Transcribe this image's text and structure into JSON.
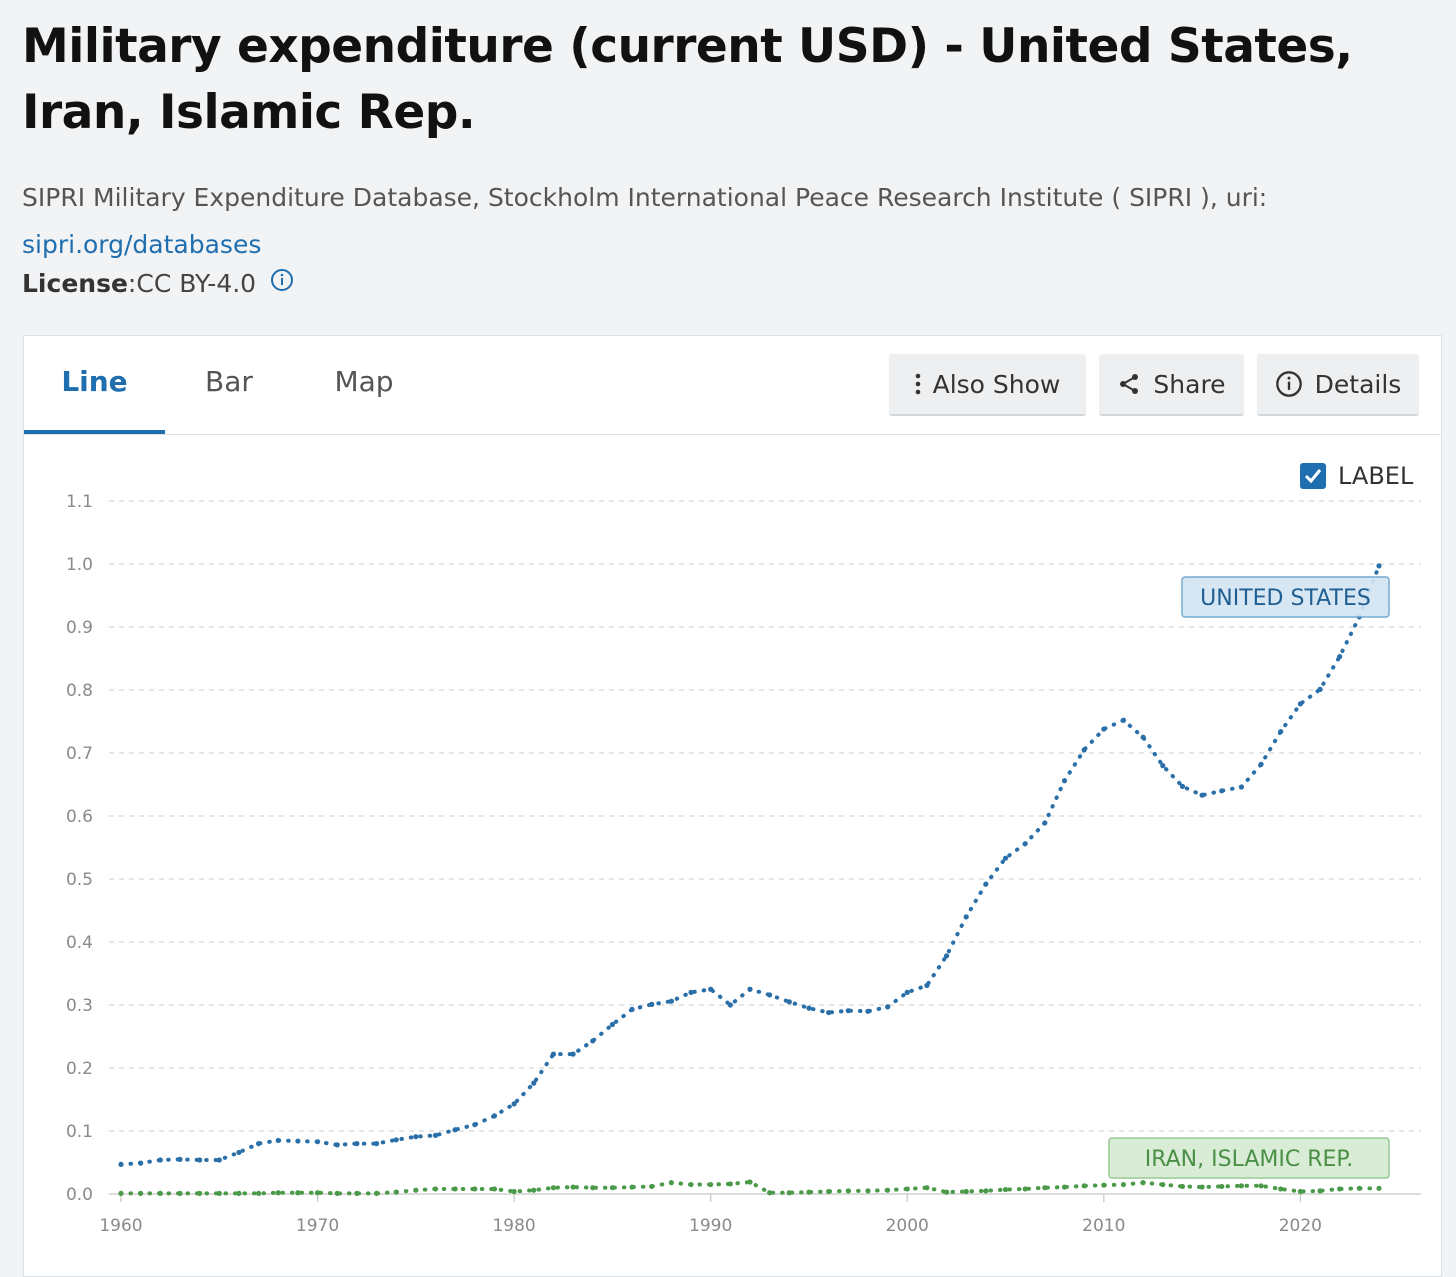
{
  "header": {
    "title": "Military expenditure (current USD) - United States, Iran, Islamic Rep.",
    "source_text": "SIPRI Military Expenditure Database, Stockholm International Peace Research Institute ( SIPRI ), uri:",
    "source_link": "sipri.org/databases",
    "license_label": "License",
    "license_sep": " : ",
    "license_value": "CC BY-4.0"
  },
  "tabs": [
    {
      "label": "Line"
    },
    {
      "label": "Bar"
    },
    {
      "label": "Map"
    }
  ],
  "toolbar": {
    "also_show": "Also Show",
    "share": "Share",
    "details": "Details"
  },
  "label_toggle": "LABEL",
  "colors": {
    "accent": "#1f6fb0",
    "us": "#2a6fa8",
    "iran": "#4a9a4a",
    "us_label_bg": "#d3e4f2",
    "iran_label_bg": "#d6ebd3"
  },
  "chart_data": {
    "type": "line",
    "title": "Military expenditure (current USD) - United States, Iran, Islamic Rep.",
    "xlabel": "",
    "ylabel": "",
    "xlim": [
      1960,
      2024
    ],
    "ylim": [
      0,
      1.1
    ],
    "xticks": [
      1960,
      1970,
      1980,
      1990,
      2000,
      2010,
      2020
    ],
    "yticks": [
      "0.0",
      "0.1",
      "0.2",
      "0.3",
      "0.4",
      "0.5",
      "0.6",
      "0.7",
      "0.8",
      "0.9",
      "1.0",
      "1.1"
    ],
    "grid": true,
    "x": [
      1960,
      1961,
      1962,
      1963,
      1964,
      1965,
      1966,
      1967,
      1968,
      1969,
      1970,
      1971,
      1972,
      1973,
      1974,
      1975,
      1976,
      1977,
      1978,
      1979,
      1980,
      1981,
      1982,
      1983,
      1984,
      1985,
      1986,
      1987,
      1988,
      1989,
      1990,
      1991,
      1992,
      1993,
      1994,
      1995,
      1996,
      1997,
      1998,
      1999,
      2000,
      2001,
      2002,
      2003,
      2004,
      2005,
      2006,
      2007,
      2008,
      2009,
      2010,
      2011,
      2012,
      2013,
      2014,
      2015,
      2016,
      2017,
      2018,
      2019,
      2020,
      2021,
      2022,
      2023,
      2024
    ],
    "series": [
      {
        "name": "UNITED STATES",
        "values": [
          0.047,
          0.049,
          0.054,
          0.055,
          0.054,
          0.054,
          0.066,
          0.08,
          0.085,
          0.084,
          0.083,
          0.078,
          0.08,
          0.08,
          0.086,
          0.091,
          0.093,
          0.102,
          0.11,
          0.124,
          0.143,
          0.176,
          0.222,
          0.222,
          0.243,
          0.269,
          0.293,
          0.301,
          0.306,
          0.32,
          0.325,
          0.3,
          0.325,
          0.316,
          0.305,
          0.295,
          0.288,
          0.291,
          0.29,
          0.297,
          0.32,
          0.331,
          0.378,
          0.44,
          0.492,
          0.533,
          0.556,
          0.589,
          0.656,
          0.705,
          0.738,
          0.752,
          0.725,
          0.68,
          0.647,
          0.633,
          0.64,
          0.646,
          0.682,
          0.734,
          0.778,
          0.801,
          0.853,
          0.916,
          0.997
        ]
      },
      {
        "name": "IRAN, ISLAMIC REP.",
        "values": [
          0.001,
          0.001,
          0.001,
          0.001,
          0.001,
          0.001,
          0.001,
          0.001,
          0.002,
          0.002,
          0.002,
          0.001,
          0.001,
          0.001,
          0.003,
          0.006,
          0.008,
          0.008,
          0.008,
          0.008,
          0.004,
          0.006,
          0.01,
          0.011,
          0.01,
          0.01,
          0.011,
          0.012,
          0.018,
          0.015,
          0.015,
          0.016,
          0.019,
          0.002,
          0.002,
          0.003,
          0.004,
          0.005,
          0.005,
          0.006,
          0.008,
          0.01,
          0.003,
          0.004,
          0.005,
          0.007,
          0.008,
          0.01,
          0.011,
          0.013,
          0.014,
          0.015,
          0.018,
          0.015,
          0.012,
          0.011,
          0.012,
          0.013,
          0.013,
          0.008,
          0.004,
          0.005,
          0.008,
          0.009,
          0.009
        ]
      }
    ]
  }
}
